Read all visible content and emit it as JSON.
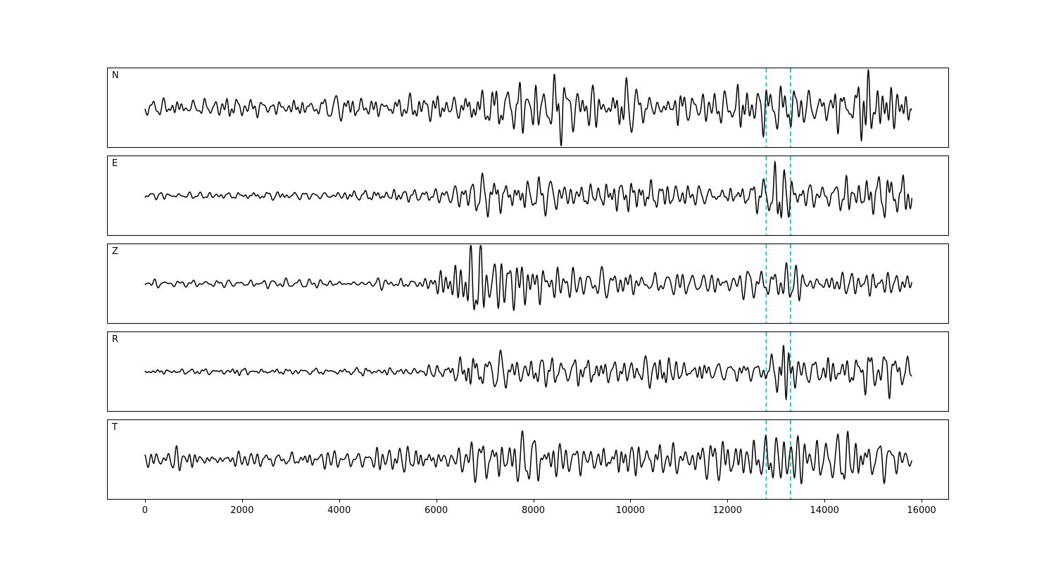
{
  "figure": {
    "background": "#ffffff",
    "border_color": "#000000"
  },
  "chart_data": {
    "type": "line",
    "title": "",
    "xlabel": "",
    "ylabel": "",
    "description": "Five stacked seismogram waveform traces (components N, E, Z, R, T) with two vertical cyan dashed pick lines",
    "x_axis_range": [
      -767,
      16550
    ],
    "data_x_range": [
      0,
      15800
    ],
    "sample_step": 10,
    "x_ticks": [
      0,
      2000,
      4000,
      6000,
      8000,
      10000,
      12000,
      14000,
      16000
    ],
    "x_tick_labels": [
      "0",
      "2000",
      "4000",
      "6000",
      "8000",
      "10000",
      "12000",
      "14000",
      "16000"
    ],
    "grid": false,
    "legend": "none",
    "trace_color": "#000000",
    "vlines": {
      "x": [
        12800,
        13300
      ],
      "color": "#00bfbf",
      "style": "dashed"
    },
    "panels": [
      {
        "label": "N",
        "seed": 3,
        "envelope": [
          [
            0,
            0.3
          ],
          [
            1500,
            0.28
          ],
          [
            3000,
            0.25
          ],
          [
            4200,
            0.32
          ],
          [
            5500,
            0.35
          ],
          [
            6400,
            0.45
          ],
          [
            6900,
            0.75
          ],
          [
            7600,
            1.0
          ],
          [
            8300,
            0.85
          ],
          [
            9000,
            0.75
          ],
          [
            9800,
            0.65
          ],
          [
            10800,
            0.6
          ],
          [
            11800,
            0.55
          ],
          [
            12600,
            0.5
          ],
          [
            13000,
            0.95
          ],
          [
            13600,
            0.7
          ],
          [
            14300,
            0.9
          ],
          [
            14800,
            0.95
          ],
          [
            15300,
            0.7
          ],
          [
            15800,
            0.55
          ]
        ]
      },
      {
        "label": "E",
        "seed": 7,
        "envelope": [
          [
            0,
            0.1
          ],
          [
            2000,
            0.1
          ],
          [
            4000,
            0.13
          ],
          [
            5200,
            0.18
          ],
          [
            6200,
            0.25
          ],
          [
            6600,
            0.45
          ],
          [
            7000,
            0.55
          ],
          [
            7600,
            0.4
          ],
          [
            8200,
            0.45
          ],
          [
            9000,
            0.5
          ],
          [
            9700,
            0.45
          ],
          [
            10300,
            0.55
          ],
          [
            11000,
            0.4
          ],
          [
            11700,
            0.3
          ],
          [
            12500,
            0.28
          ],
          [
            12900,
            0.55
          ],
          [
            13100,
            1.0
          ],
          [
            13400,
            0.6
          ],
          [
            13900,
            0.55
          ],
          [
            14400,
            0.7
          ],
          [
            14900,
            0.5
          ],
          [
            15400,
            0.65
          ],
          [
            15800,
            0.5
          ]
        ]
      },
      {
        "label": "Z",
        "seed": 13,
        "envelope": [
          [
            0,
            0.13
          ],
          [
            2000,
            0.15
          ],
          [
            3500,
            0.15
          ],
          [
            4600,
            0.18
          ],
          [
            4800,
            0.45
          ],
          [
            5200,
            0.25
          ],
          [
            6000,
            0.3
          ],
          [
            6400,
            0.7
          ],
          [
            6900,
            1.0
          ],
          [
            7300,
            0.8
          ],
          [
            7800,
            0.65
          ],
          [
            8300,
            0.6
          ],
          [
            9000,
            0.45
          ],
          [
            9700,
            0.4
          ],
          [
            10500,
            0.45
          ],
          [
            11200,
            0.35
          ],
          [
            12000,
            0.35
          ],
          [
            12800,
            0.4
          ],
          [
            13300,
            0.45
          ],
          [
            14000,
            0.35
          ],
          [
            14800,
            0.3
          ],
          [
            15800,
            0.3
          ]
        ]
      },
      {
        "label": "R",
        "seed": 21,
        "envelope": [
          [
            0,
            0.08
          ],
          [
            2000,
            0.1
          ],
          [
            3500,
            0.1
          ],
          [
            5000,
            0.13
          ],
          [
            6000,
            0.15
          ],
          [
            6500,
            0.45
          ],
          [
            7000,
            0.55
          ],
          [
            7500,
            0.5
          ],
          [
            8200,
            0.45
          ],
          [
            9000,
            0.5
          ],
          [
            9800,
            0.45
          ],
          [
            10500,
            0.4
          ],
          [
            11300,
            0.3
          ],
          [
            12200,
            0.25
          ],
          [
            12700,
            0.25
          ],
          [
            12950,
            0.9
          ],
          [
            13150,
            1.0
          ],
          [
            13500,
            0.5
          ],
          [
            14000,
            0.55
          ],
          [
            14600,
            0.5
          ],
          [
            15200,
            0.45
          ],
          [
            15800,
            0.35
          ]
        ]
      },
      {
        "label": "T",
        "seed": 29,
        "envelope": [
          [
            0,
            0.3
          ],
          [
            1500,
            0.28
          ],
          [
            3000,
            0.25
          ],
          [
            4500,
            0.28
          ],
          [
            5500,
            0.45
          ],
          [
            6300,
            0.4
          ],
          [
            7000,
            0.75
          ],
          [
            7500,
            0.6
          ],
          [
            8200,
            0.65
          ],
          [
            9000,
            0.55
          ],
          [
            9800,
            0.6
          ],
          [
            10700,
            0.55
          ],
          [
            11500,
            0.5
          ],
          [
            12300,
            0.5
          ],
          [
            12900,
            0.75
          ],
          [
            13100,
            1.0
          ],
          [
            13500,
            0.6
          ],
          [
            14200,
            0.7
          ],
          [
            14800,
            0.75
          ],
          [
            15300,
            0.55
          ],
          [
            15800,
            0.4
          ]
        ]
      }
    ]
  }
}
